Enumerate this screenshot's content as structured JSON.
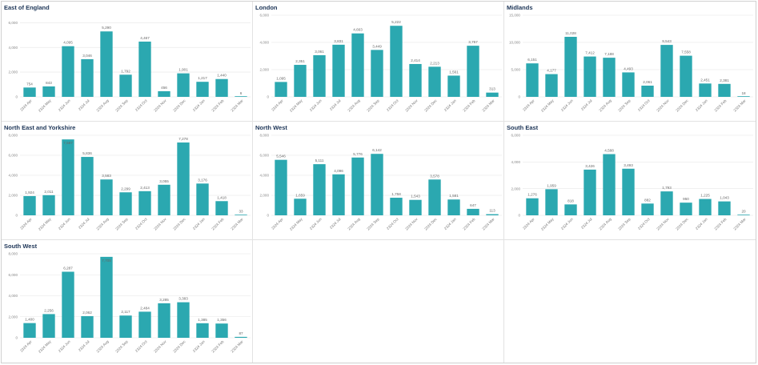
{
  "colors": {
    "bar": "#2ba8b0",
    "grid": "#e6e6e6",
    "title": "#1d3557"
  },
  "chart_data": [
    {
      "type": "bar",
      "title": "East of England",
      "categories": [
        "2324 Apr",
        "2324 May",
        "2324 Jun",
        "2324 Jul",
        "2324 Aug",
        "2324 Sep",
        "2324 Oct",
        "2324 Nov",
        "2324 Dec",
        "2324 Jan",
        "2324 Feb",
        "2324 Mar"
      ],
      "values": [
        754,
        843,
        4095,
        3046,
        5290,
        1792,
        4467,
        456,
        1901,
        1217,
        1440,
        6
      ],
      "value_labels": [
        "754",
        "843",
        "4,095",
        "3,046",
        "5,290",
        "1,792",
        "4,467",
        "456",
        "1,901",
        "1,217",
        "1,440",
        "6"
      ],
      "yticks": [
        0,
        2000,
        4000,
        6000
      ],
      "ytick_labels": [
        "0",
        "2,000",
        "4,000",
        "6,000"
      ],
      "ylim": [
        0,
        6600
      ],
      "grid": true
    },
    {
      "type": "bar",
      "title": "London",
      "categories": [
        "2324 Apr",
        "2324 May",
        "2324 Jun",
        "2324 Jul",
        "2324 Aug",
        "2324 Sep",
        "2324 Oct",
        "2324 Nov",
        "2324 Dec",
        "2324 Jan",
        "2324 Feb",
        "2324 Mar"
      ],
      "values": [
        1095,
        2351,
        3061,
        3831,
        4663,
        3449,
        5222,
        2414,
        2213,
        1561,
        3757,
        313
      ],
      "value_labels": [
        "1,095",
        "2,351",
        "3,061",
        "3,831",
        "4,663",
        "3,449",
        "5,222",
        "2,414",
        "2,213",
        "1,561",
        "3,757",
        "313"
      ],
      "yticks": [
        0,
        2000,
        4000,
        6000
      ],
      "ytick_labels": [
        "0",
        "2,000",
        "4,000",
        "6,000"
      ],
      "ylim": [
        0,
        6000
      ],
      "grid": true
    },
    {
      "type": "bar",
      "title": "Midlands",
      "categories": [
        "2324 Apr",
        "2324 May",
        "2324 Jun",
        "2324 Jul",
        "2324 Aug",
        "2324 Sep",
        "2324 Oct",
        "2324 Nov",
        "2324 Dec",
        "2324 Jan",
        "2324 Feb",
        "2324 Mar"
      ],
      "values": [
        6151,
        4177,
        11028,
        7412,
        7188,
        4493,
        2061,
        9543,
        7558,
        2451,
        2381,
        18
      ],
      "value_labels": [
        "6,151",
        "4,177",
        "11,028",
        "7,412",
        "7,188",
        "4,493",
        "2,061",
        "9,543",
        "7,558",
        "2,451",
        "2,381",
        "18"
      ],
      "yticks": [
        0,
        5000,
        10000,
        15000
      ],
      "ytick_labels": [
        "0",
        "5,000",
        "10,000",
        "15,000"
      ],
      "ylim": [
        0,
        15000
      ],
      "grid": true
    },
    {
      "type": "bar",
      "title": "North East and Yorkshire",
      "categories": [
        "2324 Apr",
        "2324 May",
        "2324 Jun",
        "2324 Jul",
        "2324 Aug",
        "2324 Sep",
        "2324 Oct",
        "2324 Nov",
        "2324 Dec",
        "2324 Jan",
        "2324 Feb",
        "2324 Mar"
      ],
      "values": [
        1924,
        2011,
        7587,
        5836,
        3583,
        2299,
        2413,
        3055,
        7278,
        3176,
        1418,
        33
      ],
      "value_labels": [
        "1,924",
        "2,011",
        "7,587",
        "5,836",
        "3,583",
        "2,299",
        "2,413",
        "3,055",
        "7,278",
        "3,176",
        "1,418",
        "33"
      ],
      "yticks": [
        0,
        2000,
        4000,
        6000,
        8000
      ],
      "ytick_labels": [
        "0",
        "2,000",
        "4,000",
        "6,000",
        "8,000"
      ],
      "ylim": [
        0,
        8000
      ],
      "grid": true
    },
    {
      "type": "bar",
      "title": "North West",
      "categories": [
        "2324 Apr",
        "2324 May",
        "2324 Jun",
        "2324 Jul",
        "2324 Aug",
        "2324 Sep",
        "2324 Oct",
        "2324 Nov",
        "2324 Dec",
        "2324 Jan",
        "2324 Feb",
        "2324 Mar"
      ],
      "values": [
        5546,
        1659,
        5111,
        4096,
        5776,
        6142,
        1758,
        1543,
        3578,
        1581,
        647,
        113
      ],
      "value_labels": [
        "5,546",
        "1,659",
        "5,111",
        "4,096",
        "5,776",
        "6,142",
        "1,758",
        "1,543",
        "3,578",
        "1,581",
        "647",
        "113"
      ],
      "yticks": [
        0,
        2000,
        4000,
        6000,
        8000
      ],
      "ytick_labels": [
        "0",
        "2,000",
        "4,000",
        "6,000",
        "8,000"
      ],
      "ylim": [
        0,
        8000
      ],
      "grid": true
    },
    {
      "type": "bar",
      "title": "South East",
      "categories": [
        "2324 Apr",
        "2324 May",
        "2324 Jun",
        "2324 Jul",
        "2324 Aug",
        "2324 Sep",
        "2324 Oct",
        "2324 Nov",
        "2324 Dec",
        "2324 Jan",
        "2324 Feb",
        "2324 Mar"
      ],
      "values": [
        1276,
        1959,
        818,
        3426,
        4588,
        3493,
        882,
        1793,
        950,
        1225,
        1043,
        20
      ],
      "value_labels": [
        "1,276",
        "1,959",
        "818",
        "3,426",
        "4,588",
        "3,493",
        "882",
        "1,793",
        "950",
        "1,225",
        "1,043",
        "20"
      ],
      "yticks": [
        0,
        2000,
        4000,
        6000
      ],
      "ytick_labels": [
        "0",
        "2,000",
        "4,000",
        "6,000"
      ],
      "ylim": [
        0,
        6000
      ],
      "grid": true
    },
    {
      "type": "bar",
      "title": "South West",
      "categories": [
        "2324 Apr",
        "2324 May",
        "2324 Jun",
        "2324 Jul",
        "2324 Aug",
        "2324 Sep",
        "2324 Oct",
        "2324 Nov",
        "2324 Dec",
        "2324 Jan",
        "2324 Feb",
        "2324 Mar"
      ],
      "values": [
        1400,
        2256,
        6287,
        2062,
        7705,
        2117,
        2484,
        3285,
        3383,
        1385,
        1356,
        87
      ],
      "value_labels": [
        "1,400",
        "2,256",
        "6,287",
        "2,062",
        "7,705",
        "2,117",
        "2,484",
        "3,285",
        "3,383",
        "1,385",
        "1,356",
        "87"
      ],
      "yticks": [
        0,
        2000,
        4000,
        6000,
        8000
      ],
      "ytick_labels": [
        "0",
        "2,000",
        "4,000",
        "6,000",
        "8,000"
      ],
      "ylim": [
        0,
        8000
      ],
      "grid": true
    }
  ]
}
